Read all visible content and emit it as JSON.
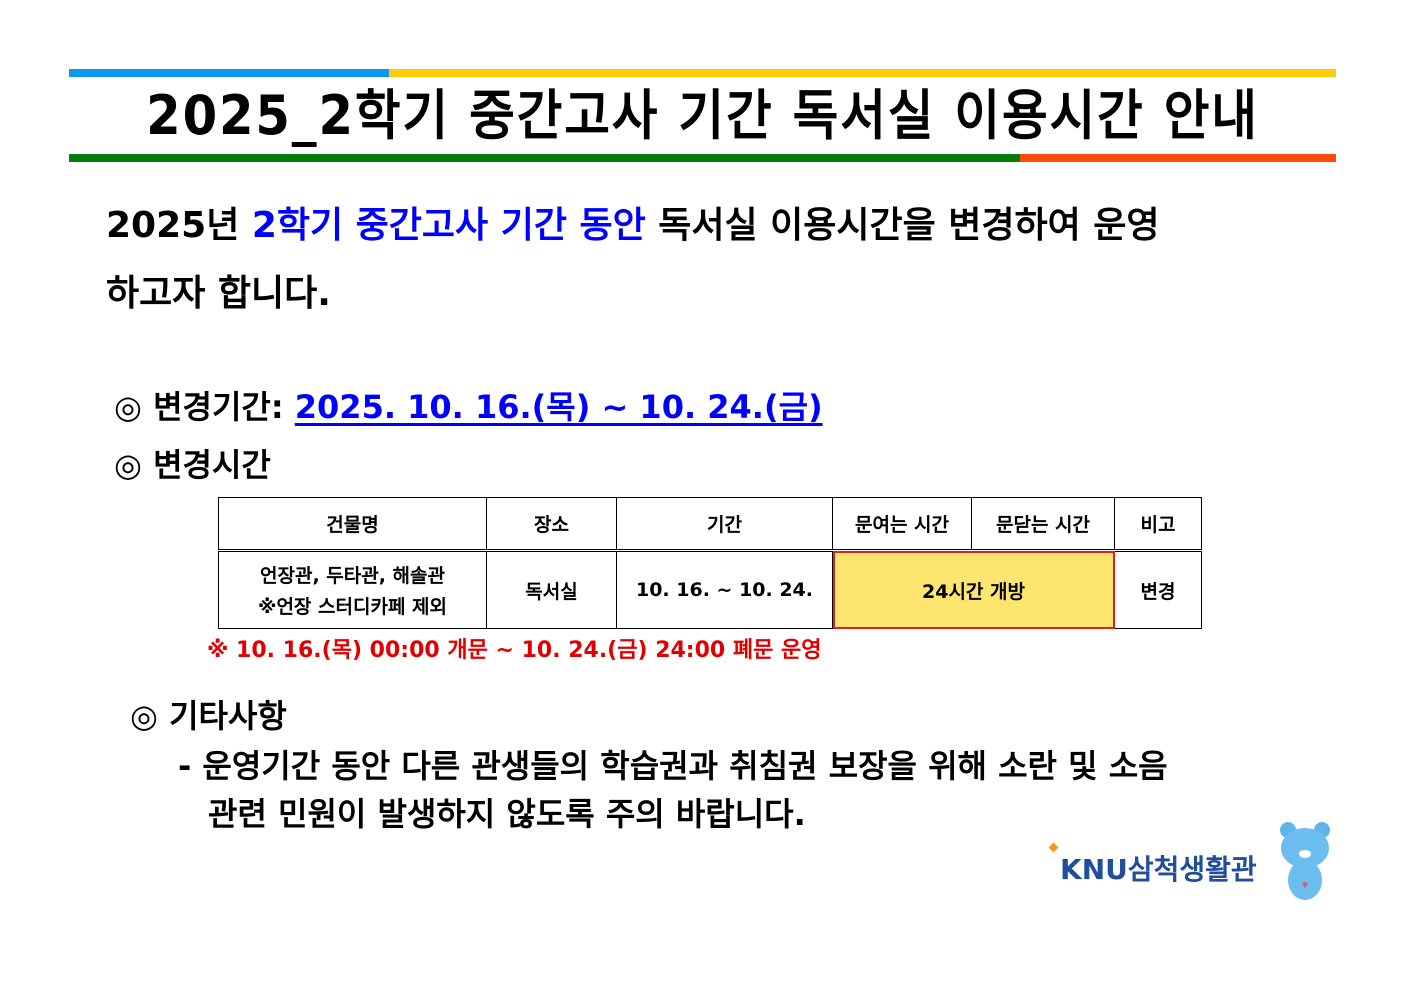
{
  "title": "2025_2학기 중간고사 기간 독서실 이용시간 안내",
  "intro": {
    "prefix": "2025년 ",
    "highlight": "2학기 중간고사 기간 동안",
    "suffix": " 독서실 이용시간을 변경하여 운영",
    "line2": "하고자 합니다."
  },
  "period": {
    "marker": "◎",
    "label": "변경기간: ",
    "value": "2025. 10. 16.(목) ~ 10. 24.(금)"
  },
  "hours": {
    "marker": "◎",
    "label": "변경시간"
  },
  "table": {
    "headers": [
      "건물명",
      "장소",
      "기간",
      "문여는 시간",
      "문닫는 시간",
      "비고"
    ],
    "row": {
      "building_line1": "언장관, 두타관, 해솔관",
      "building_line2": "※언장 스터디카페 제외",
      "place": "독서실",
      "period": "10. 16. ~ 10. 24.",
      "hours": "24시간 개방",
      "note": "변경"
    }
  },
  "table_note": "※ 10. 16.(목) 00:00 개문 ~ 10. 24.(금) 24:00 폐문 운영",
  "other": {
    "marker": "◎",
    "label": "기타사항",
    "line1": "- 운영기간 동안 다른 관생들의 학습권과 취침권 보장을 위해 소란 및 소음",
    "line2": "관련 민원이 발생하지 않도록 주의 바랍니다."
  },
  "logo": {
    "text": "KNU삼척생활관"
  },
  "colors": {
    "bar_blue": "#0a98f0",
    "bar_yellow": "#fdcc09",
    "bar_green": "#047d0a",
    "bar_red": "#ff4a0a",
    "highlight": "#0000ff",
    "note_red": "#e00000",
    "cell_fill": "#fde66f"
  }
}
